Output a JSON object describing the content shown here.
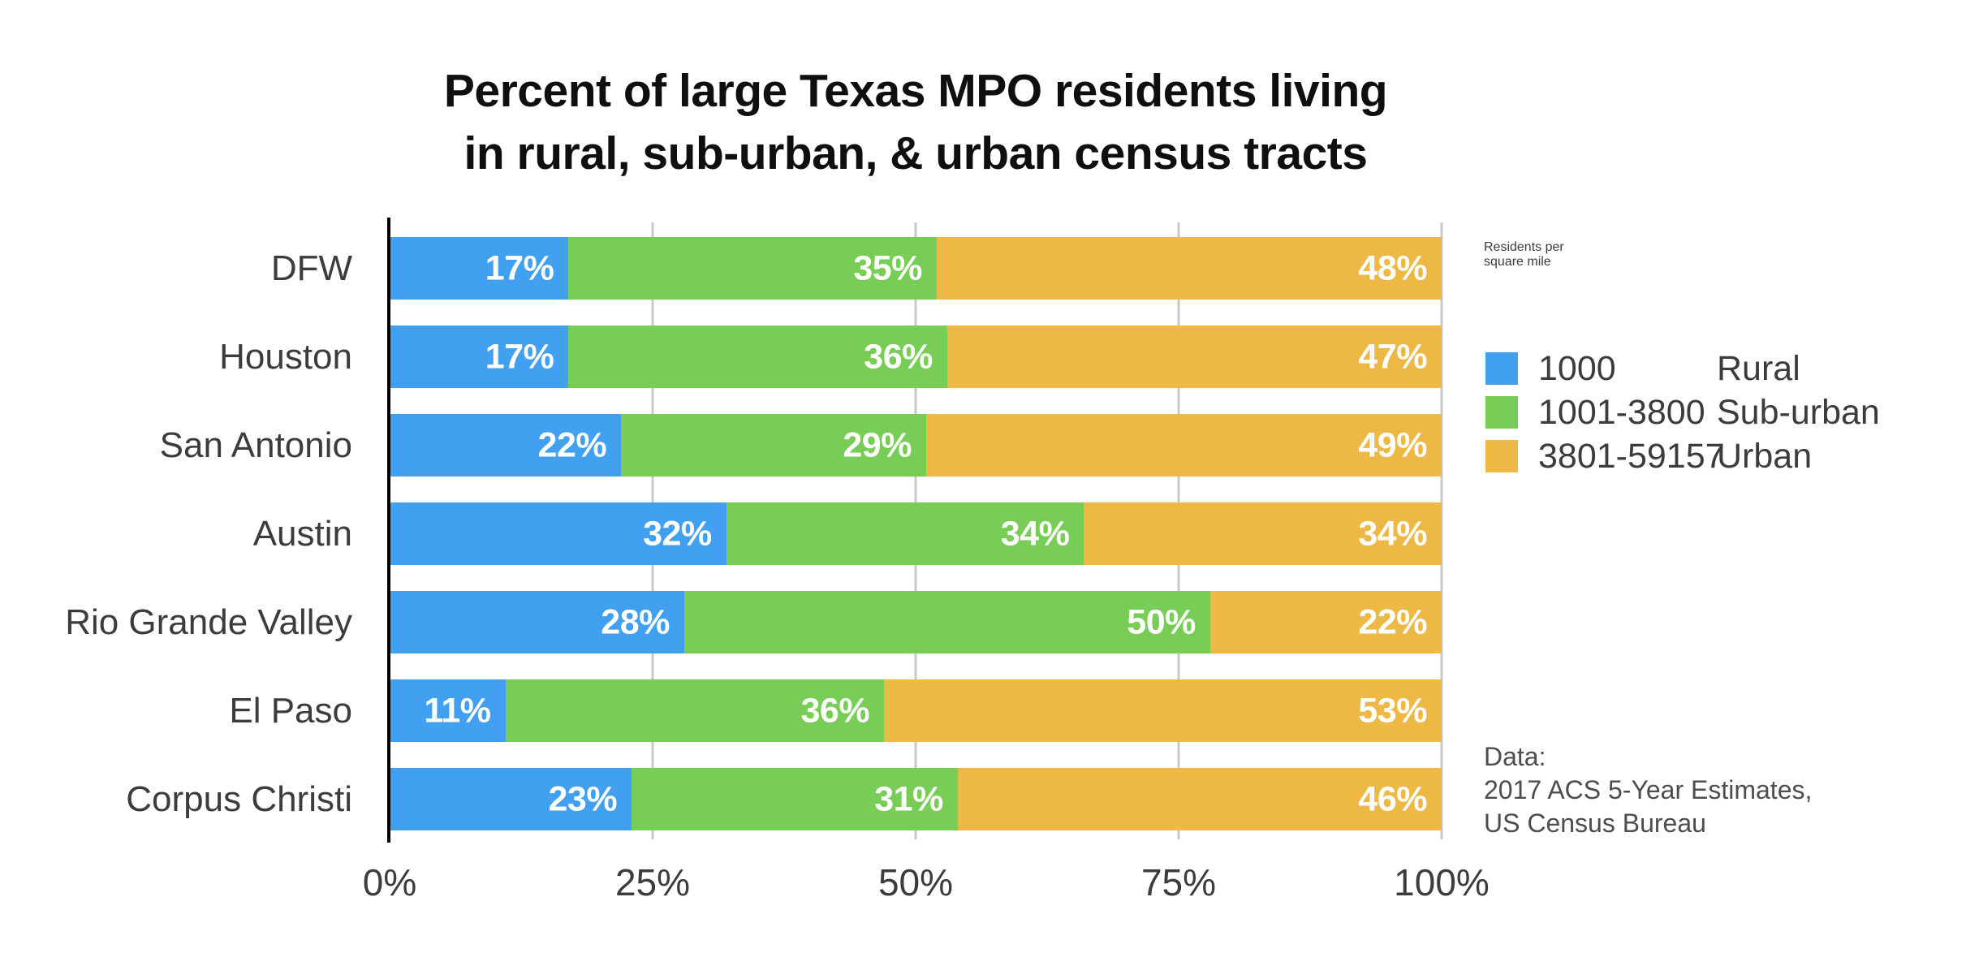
{
  "title": {
    "line1": "Percent of large Texas MPO residents living",
    "line2": "in rural, sub-urban, & urban census tracts"
  },
  "chart_data": {
    "type": "bar",
    "orientation": "horizontal",
    "stacked": true,
    "title": "Percent of large Texas MPO residents living in rural, sub-urban, & urban census tracts",
    "categories": [
      "DFW",
      "Houston",
      "San Antonio",
      "Austin",
      "Rio Grande Valley",
      "El Paso",
      "Corpus Christi"
    ],
    "series": [
      {
        "name": "Rural",
        "density": "1000",
        "color": "#42A0F0",
        "values": [
          17,
          17,
          22,
          32,
          28,
          11,
          23
        ]
      },
      {
        "name": "Sub-urban",
        "density": "1001-3800",
        "color": "#77CD55",
        "values": [
          35,
          36,
          29,
          34,
          50,
          36,
          31
        ]
      },
      {
        "name": "Urban",
        "density": "3801-59157",
        "color": "#EDB844",
        "values": [
          48,
          47,
          49,
          34,
          22,
          53,
          46
        ]
      }
    ],
    "x_ticks": [
      "0%",
      "25%",
      "50%",
      "75%",
      "100%"
    ],
    "x_tick_values": [
      0,
      25,
      50,
      75,
      100
    ],
    "xlim": [
      0,
      100
    ],
    "value_label_suffix": "%",
    "grid": "vertical",
    "gridline_color": "#C8C8C8",
    "axis_color": "#000000",
    "legend_position": "right"
  },
  "legend": {
    "header_line1": "Residents per",
    "header_line2": "square mile",
    "items": [
      {
        "density": "1000",
        "zone": "Rural",
        "color": "#42A0F0"
      },
      {
        "density": "1001-3800",
        "zone": "Sub-urban",
        "color": "#77CD55"
      },
      {
        "density": "3801-59157",
        "zone": "Urban",
        "color": "#EDB844"
      }
    ]
  },
  "note": {
    "line1": "Data:",
    "line2": "2017 ACS 5-Year Estimates,",
    "line3": "US Census Bureau"
  }
}
